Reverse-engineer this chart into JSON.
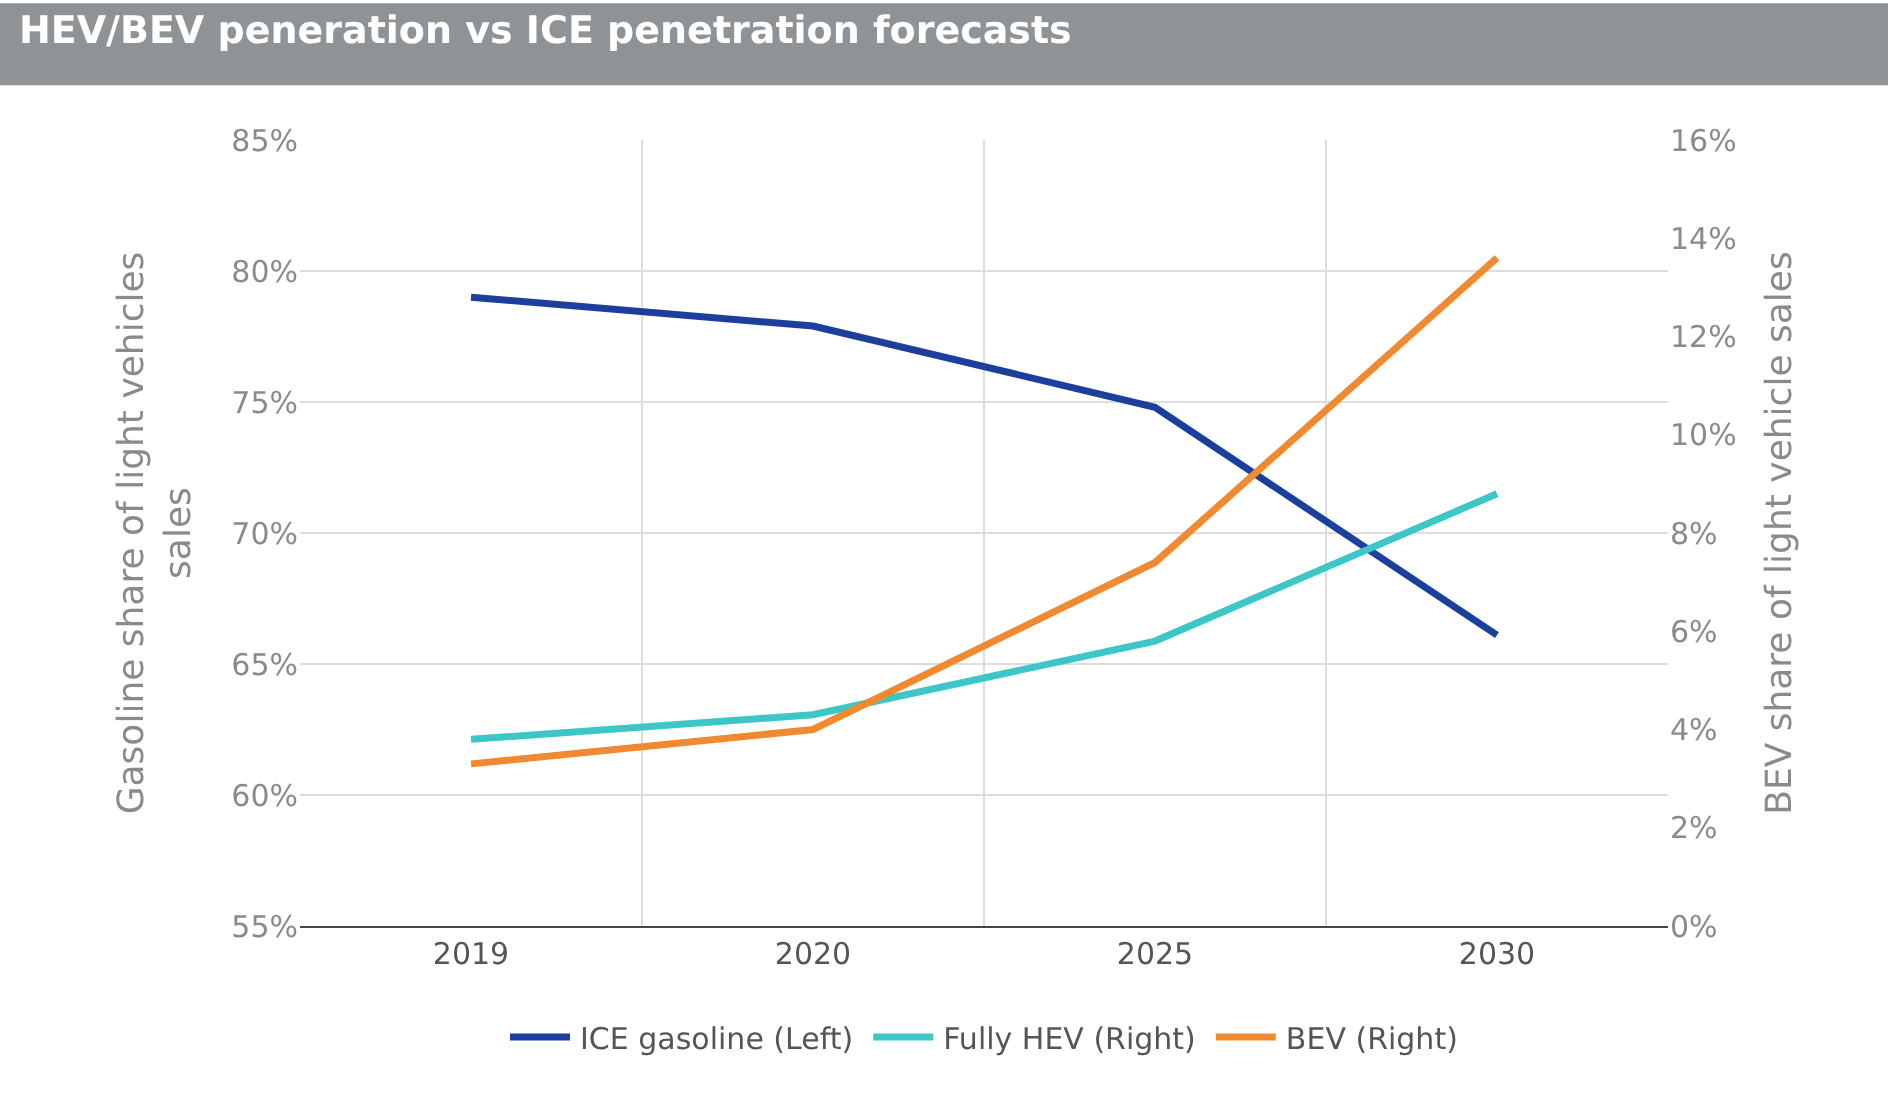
{
  "chart_data": {
    "type": "line",
    "title": "HEV/BEV peneration vs ICE penetration forecasts",
    "ylabel": "Gasoline share of light vehicles sales",
    "y2label": "BEV share of light vehicle sales",
    "categories": [
      "2019",
      "2020",
      "2025",
      "2030"
    ],
    "series": [
      {
        "name": "ICE gasoline (Left)",
        "color": "#1c3f9e",
        "values": [
          79.0,
          77.9,
          74.8,
          66.1
        ]
      },
      {
        "name": "Fully HEV (Right)",
        "color": "#3cc6c8",
        "axis": "y2",
        "values": [
          3.8,
          4.3,
          5.8,
          8.8
        ]
      },
      {
        "name": "BEV (Right)",
        "color": "#f0892f",
        "axis": "y2",
        "values": [
          3.3,
          4.0,
          7.4,
          13.6
        ]
      }
    ],
    "ylim": [
      55,
      85
    ],
    "yticks": [
      {
        "value": 55,
        "label": "55%"
      },
      {
        "value": 60,
        "label": "60%"
      },
      {
        "value": 65,
        "label": "65%"
      },
      {
        "value": 70,
        "label": "70%"
      },
      {
        "value": 75,
        "label": "75%"
      },
      {
        "value": 80,
        "label": "80%"
      },
      {
        "value": 85,
        "label": "85%"
      }
    ],
    "y2lim": [
      0,
      16
    ],
    "y2ticks": [
      {
        "value": 0,
        "label": "0%"
      },
      {
        "value": 2,
        "label": "2%"
      },
      {
        "value": 4,
        "label": "4%"
      },
      {
        "value": 6,
        "label": "6%"
      },
      {
        "value": 8,
        "label": "8%"
      },
      {
        "value": 10,
        "label": "10%"
      },
      {
        "value": 12,
        "label": "12%"
      },
      {
        "value": 14,
        "label": "14%"
      },
      {
        "value": 16,
        "label": "16%"
      }
    ],
    "grid": true,
    "legend": "bottom",
    "marker": "none",
    "line_style": "solid"
  }
}
